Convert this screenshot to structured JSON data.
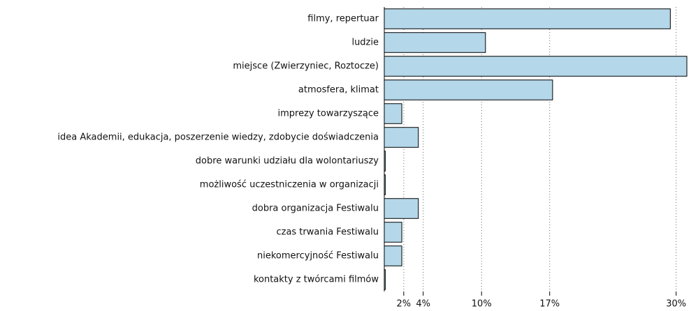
{
  "chart_data": {
    "type": "barh",
    "categories": [
      "filmy, repertuar",
      "ludzie",
      "miejsce (Zwierzyniec, Roztocze)",
      "atmosfera, klimat",
      "imprezy towarzyszące",
      "idea Akademii, edukacja, poszerzenie wiedzy, zdobycie doświadczenia",
      "dobre warunki udziału dla wolontariuszy",
      "możliwość uczestniczenia w organizacji",
      "dobra organizacja Festiwalu",
      "czas trwania Festiwalu",
      "niekomercyjność Festiwalu",
      "kontakty z twórcami filmów"
    ],
    "values": [
      29.4,
      10.4,
      31.1,
      17.3,
      1.8,
      3.5,
      0.1,
      0.1,
      3.5,
      1.8,
      1.8,
      0.1
    ],
    "color": "#b4d7ea",
    "xlim": [
      0,
      31.6
    ],
    "xticks": [
      {
        "value": 2,
        "label": "2%"
      },
      {
        "value": 4,
        "label": "4%"
      },
      {
        "value": 10,
        "label": "10%"
      },
      {
        "value": 17,
        "label": "17%"
      },
      {
        "value": 30,
        "label": "30%"
      }
    ],
    "grid": true
  }
}
